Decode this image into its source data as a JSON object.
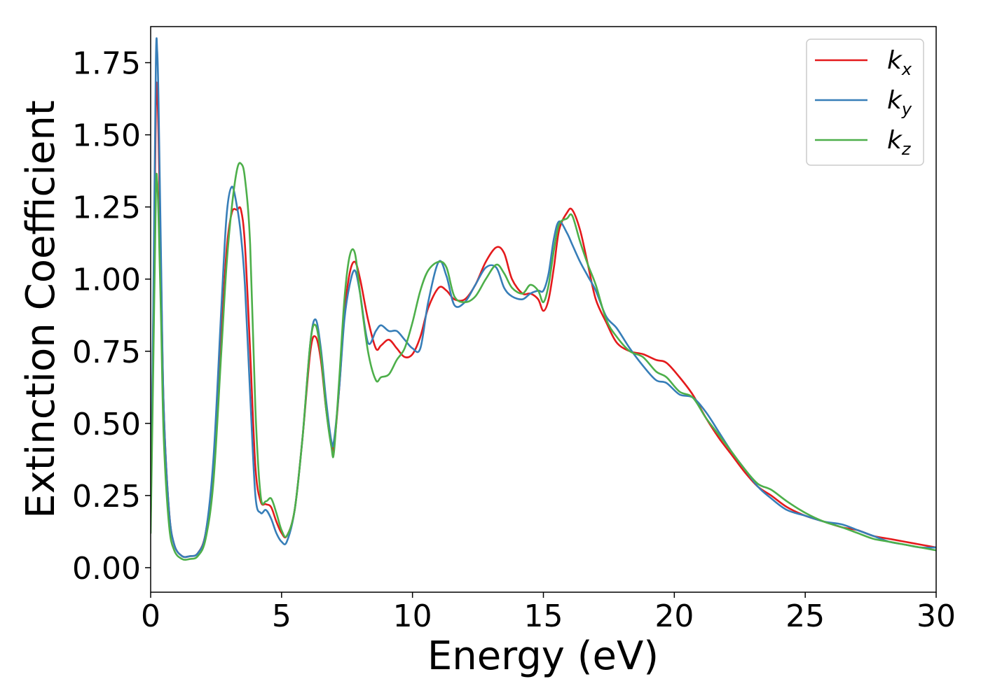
{
  "chart_data": {
    "type": "line",
    "title": "",
    "xlabel": "Energy (eV)",
    "ylabel": "Extinction Coefficient",
    "xlim": [
      0,
      30
    ],
    "ylim": [
      -0.085,
      1.875
    ],
    "xticks": [
      0,
      5,
      10,
      15,
      20,
      25,
      30
    ],
    "xtick_labels": [
      "0",
      "5",
      "10",
      "15",
      "20",
      "25",
      "30"
    ],
    "yticks": [
      0.0,
      0.25,
      0.5,
      0.75,
      1.0,
      1.25,
      1.5,
      1.75
    ],
    "ytick_labels": [
      "0.00",
      "0.25",
      "0.50",
      "0.75",
      "1.00",
      "1.25",
      "1.50",
      "1.75"
    ],
    "grid": false,
    "legend_position": "top-right",
    "series": [
      {
        "name": "k_x",
        "label_base": "k",
        "label_sub": "x",
        "color": "#e41a1c",
        "x": [
          0,
          0.1,
          0.2,
          0.25,
          0.3,
          0.4,
          0.5,
          0.7,
          0.9,
          1.2,
          1.5,
          1.8,
          2.1,
          2.4,
          2.7,
          2.9,
          3.1,
          3.3,
          3.45,
          3.6,
          3.8,
          4.0,
          4.2,
          4.4,
          4.6,
          4.8,
          5.0,
          5.2,
          5.5,
          5.8,
          6.1,
          6.3,
          6.5,
          6.7,
          6.9,
          7.0,
          7.2,
          7.4,
          7.6,
          7.8,
          8.0,
          8.3,
          8.6,
          8.8,
          9.1,
          9.4,
          9.7,
          10.0,
          10.3,
          10.6,
          11.0,
          11.3,
          11.6,
          12.0,
          12.4,
          12.8,
          13.2,
          13.5,
          13.8,
          14.2,
          14.5,
          14.8,
          15.0,
          15.2,
          15.4,
          15.6,
          15.9,
          16.1,
          16.4,
          16.7,
          17.0,
          17.4,
          17.8,
          18.3,
          18.8,
          19.3,
          19.7,
          20.2,
          20.7,
          21.2,
          21.7,
          22.2,
          22.7,
          23.2,
          23.7,
          24.3,
          25.0,
          25.7,
          26.4,
          27.0,
          27.6,
          28.2,
          28.8,
          29.4,
          30.0
        ],
        "y": [
          0.15,
          0.85,
          1.6,
          1.65,
          1.5,
          1.0,
          0.55,
          0.2,
          0.08,
          0.04,
          0.04,
          0.05,
          0.12,
          0.35,
          0.8,
          1.1,
          1.23,
          1.24,
          1.24,
          1.12,
          0.75,
          0.35,
          0.23,
          0.22,
          0.21,
          0.16,
          0.12,
          0.11,
          0.2,
          0.45,
          0.75,
          0.8,
          0.72,
          0.55,
          0.43,
          0.42,
          0.62,
          0.88,
          1.02,
          1.06,
          1.0,
          0.86,
          0.76,
          0.77,
          0.79,
          0.76,
          0.73,
          0.74,
          0.8,
          0.9,
          0.97,
          0.96,
          0.93,
          0.93,
          0.98,
          1.06,
          1.11,
          1.09,
          1.0,
          0.95,
          0.95,
          0.93,
          0.89,
          0.93,
          1.04,
          1.17,
          1.23,
          1.24,
          1.17,
          1.05,
          0.93,
          0.85,
          0.78,
          0.75,
          0.74,
          0.72,
          0.71,
          0.66,
          0.6,
          0.52,
          0.45,
          0.39,
          0.33,
          0.28,
          0.25,
          0.21,
          0.18,
          0.16,
          0.14,
          0.13,
          0.11,
          0.1,
          0.09,
          0.08,
          0.07
        ]
      },
      {
        "name": "k_y",
        "label_base": "k",
        "label_sub": "y",
        "color": "#377eb8",
        "x": [
          0,
          0.1,
          0.2,
          0.25,
          0.3,
          0.4,
          0.5,
          0.7,
          0.9,
          1.2,
          1.5,
          1.8,
          2.1,
          2.4,
          2.7,
          2.9,
          3.1,
          3.3,
          3.45,
          3.6,
          3.8,
          4.0,
          4.2,
          4.4,
          4.6,
          4.8,
          5.0,
          5.2,
          5.5,
          5.8,
          6.1,
          6.3,
          6.5,
          6.7,
          6.9,
          7.0,
          7.2,
          7.4,
          7.6,
          7.8,
          8.0,
          8.3,
          8.6,
          8.8,
          9.1,
          9.4,
          9.7,
          10.0,
          10.3,
          10.6,
          11.0,
          11.3,
          11.6,
          12.0,
          12.4,
          12.8,
          13.2,
          13.5,
          13.8,
          14.2,
          14.5,
          14.8,
          15.0,
          15.2,
          15.4,
          15.6,
          15.9,
          16.1,
          16.4,
          16.7,
          17.0,
          17.4,
          17.8,
          18.3,
          18.8,
          19.3,
          19.7,
          20.2,
          20.7,
          21.2,
          21.7,
          22.2,
          22.7,
          23.2,
          23.7,
          24.3,
          25.0,
          25.7,
          26.4,
          27.0,
          27.6,
          28.2,
          28.8,
          29.4,
          30.0
        ],
        "y": [
          0.15,
          0.9,
          1.75,
          1.79,
          1.62,
          1.05,
          0.55,
          0.2,
          0.08,
          0.04,
          0.04,
          0.05,
          0.12,
          0.38,
          0.9,
          1.22,
          1.32,
          1.25,
          1.15,
          0.98,
          0.6,
          0.25,
          0.19,
          0.2,
          0.17,
          0.12,
          0.09,
          0.09,
          0.2,
          0.45,
          0.78,
          0.86,
          0.76,
          0.58,
          0.44,
          0.44,
          0.62,
          0.86,
          0.98,
          1.03,
          0.95,
          0.78,
          0.82,
          0.84,
          0.82,
          0.82,
          0.79,
          0.76,
          0.76,
          0.92,
          1.06,
          1.01,
          0.91,
          0.92,
          0.98,
          1.04,
          1.04,
          0.97,
          0.94,
          0.93,
          0.95,
          0.96,
          0.96,
          1.02,
          1.14,
          1.2,
          1.16,
          1.12,
          1.06,
          1.01,
          0.96,
          0.87,
          0.83,
          0.76,
          0.7,
          0.65,
          0.64,
          0.6,
          0.59,
          0.54,
          0.47,
          0.4,
          0.34,
          0.28,
          0.24,
          0.2,
          0.18,
          0.16,
          0.15,
          0.13,
          0.11,
          0.09,
          0.08,
          0.07,
          0.07
        ]
      },
      {
        "name": "k_z",
        "label_base": "k",
        "label_sub": "z",
        "color": "#4daf4a",
        "x": [
          0,
          0.1,
          0.2,
          0.25,
          0.3,
          0.4,
          0.5,
          0.7,
          0.9,
          1.2,
          1.5,
          1.8,
          2.1,
          2.4,
          2.7,
          2.9,
          3.1,
          3.3,
          3.45,
          3.6,
          3.8,
          4.0,
          4.2,
          4.4,
          4.6,
          4.8,
          5.0,
          5.2,
          5.5,
          5.8,
          6.1,
          6.3,
          6.5,
          6.7,
          6.9,
          7.0,
          7.2,
          7.4,
          7.6,
          7.8,
          8.0,
          8.3,
          8.6,
          8.8,
          9.1,
          9.4,
          9.7,
          10.0,
          10.3,
          10.6,
          11.0,
          11.3,
          11.6,
          12.0,
          12.4,
          12.8,
          13.2,
          13.5,
          13.8,
          14.2,
          14.5,
          14.8,
          15.0,
          15.2,
          15.4,
          15.6,
          15.9,
          16.1,
          16.4,
          16.7,
          17.0,
          17.4,
          17.8,
          18.3,
          18.8,
          19.3,
          19.7,
          20.2,
          20.7,
          21.2,
          21.7,
          22.2,
          22.7,
          23.2,
          23.7,
          24.3,
          25.0,
          25.7,
          26.4,
          27.0,
          27.6,
          28.2,
          28.8,
          29.4,
          30.0
        ],
        "y": [
          0.12,
          0.7,
          1.3,
          1.34,
          1.22,
          0.85,
          0.45,
          0.15,
          0.06,
          0.03,
          0.03,
          0.04,
          0.1,
          0.3,
          0.75,
          1.05,
          1.25,
          1.38,
          1.4,
          1.35,
          1.12,
          0.55,
          0.25,
          0.23,
          0.24,
          0.19,
          0.13,
          0.11,
          0.2,
          0.45,
          0.78,
          0.84,
          0.74,
          0.55,
          0.42,
          0.4,
          0.65,
          0.93,
          1.08,
          1.09,
          0.95,
          0.75,
          0.65,
          0.66,
          0.67,
          0.72,
          0.76,
          0.85,
          0.96,
          1.03,
          1.06,
          1.04,
          0.94,
          0.92,
          0.94,
          1.0,
          1.05,
          1.02,
          0.97,
          0.95,
          0.98,
          0.96,
          0.92,
          0.98,
          1.1,
          1.19,
          1.21,
          1.22,
          1.13,
          1.05,
          0.98,
          0.86,
          0.8,
          0.75,
          0.73,
          0.68,
          0.66,
          0.61,
          0.59,
          0.52,
          0.46,
          0.4,
          0.34,
          0.29,
          0.27,
          0.23,
          0.19,
          0.16,
          0.14,
          0.12,
          0.1,
          0.09,
          0.08,
          0.07,
          0.06
        ]
      }
    ]
  }
}
